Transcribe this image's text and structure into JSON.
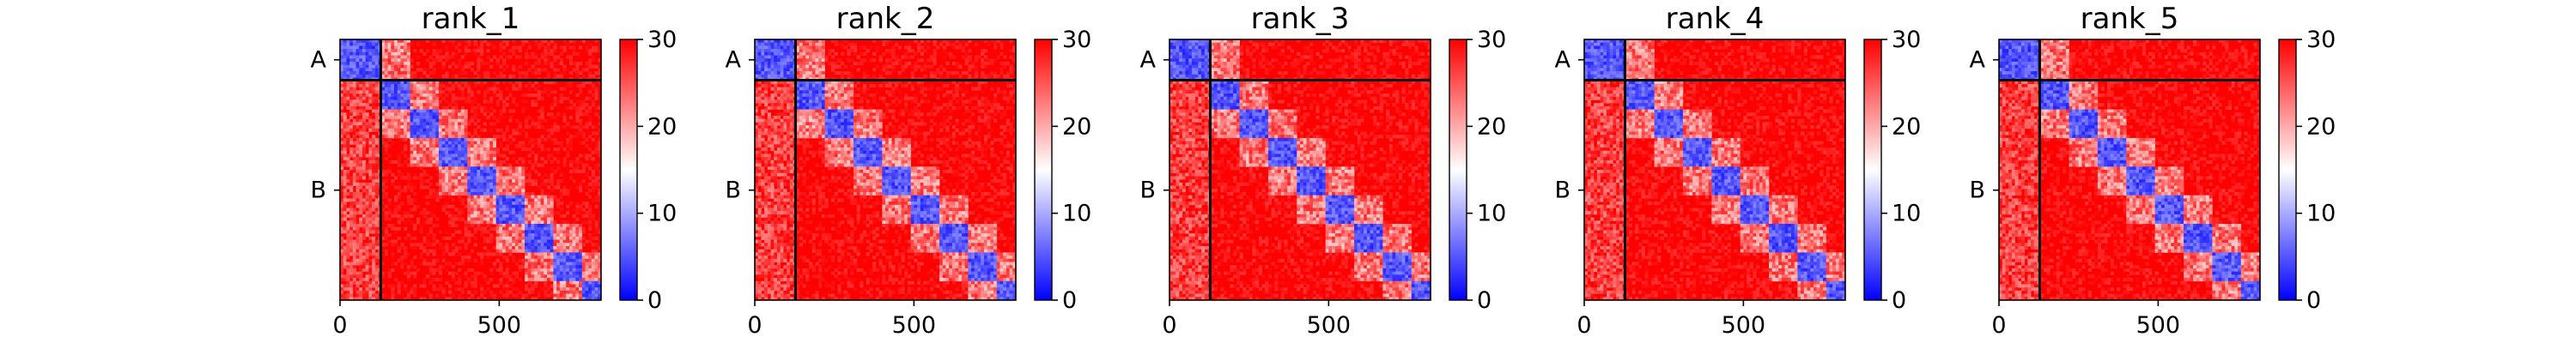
{
  "figure": {
    "background": "#ffffff"
  },
  "chart_data": [
    {
      "type": "heatmap",
      "title": "rank_1",
      "x_ticks": [
        0,
        500
      ],
      "xlim": [
        0,
        820
      ],
      "y_categories": [
        "A",
        "B"
      ],
      "group_boundary": 128,
      "blocks": [
        [
          0,
          128
        ],
        [
          128,
          218
        ],
        [
          218,
          308
        ],
        [
          308,
          398
        ],
        [
          398,
          488
        ],
        [
          488,
          578
        ],
        [
          578,
          668
        ],
        [
          668,
          758
        ],
        [
          758,
          820
        ]
      ],
      "colorbar": {
        "min": 0,
        "max": 30,
        "ticks": [
          0,
          10,
          20,
          30
        ],
        "colors": [
          "#0000ff",
          "#ffffff",
          "#ff0000"
        ]
      }
    },
    {
      "type": "heatmap",
      "title": "rank_2",
      "x_ticks": [
        0,
        500
      ],
      "xlim": [
        0,
        820
      ],
      "y_categories": [
        "A",
        "B"
      ],
      "group_boundary": 128,
      "blocks": [
        [
          0,
          128
        ],
        [
          128,
          218
        ],
        [
          218,
          308
        ],
        [
          308,
          398
        ],
        [
          398,
          488
        ],
        [
          488,
          578
        ],
        [
          578,
          668
        ],
        [
          668,
          758
        ],
        [
          758,
          820
        ]
      ],
      "colorbar": {
        "min": 0,
        "max": 30,
        "ticks": [
          0,
          10,
          20,
          30
        ],
        "colors": [
          "#0000ff",
          "#ffffff",
          "#ff0000"
        ]
      }
    },
    {
      "type": "heatmap",
      "title": "rank_3",
      "x_ticks": [
        0,
        500
      ],
      "xlim": [
        0,
        820
      ],
      "y_categories": [
        "A",
        "B"
      ],
      "group_boundary": 128,
      "blocks": [
        [
          0,
          128
        ],
        [
          128,
          218
        ],
        [
          218,
          308
        ],
        [
          308,
          398
        ],
        [
          398,
          488
        ],
        [
          488,
          578
        ],
        [
          578,
          668
        ],
        [
          668,
          758
        ],
        [
          758,
          820
        ]
      ],
      "colorbar": {
        "min": 0,
        "max": 30,
        "ticks": [
          0,
          10,
          20,
          30
        ],
        "colors": [
          "#0000ff",
          "#ffffff",
          "#ff0000"
        ]
      }
    },
    {
      "type": "heatmap",
      "title": "rank_4",
      "x_ticks": [
        0,
        500
      ],
      "xlim": [
        0,
        820
      ],
      "y_categories": [
        "A",
        "B"
      ],
      "group_boundary": 128,
      "blocks": [
        [
          0,
          128
        ],
        [
          128,
          218
        ],
        [
          218,
          308
        ],
        [
          308,
          398
        ],
        [
          398,
          488
        ],
        [
          488,
          578
        ],
        [
          578,
          668
        ],
        [
          668,
          758
        ],
        [
          758,
          820
        ]
      ],
      "colorbar": {
        "min": 0,
        "max": 30,
        "ticks": [
          0,
          10,
          20,
          30
        ],
        "colors": [
          "#0000ff",
          "#ffffff",
          "#ff0000"
        ]
      }
    },
    {
      "type": "heatmap",
      "title": "rank_5",
      "x_ticks": [
        0,
        500
      ],
      "xlim": [
        0,
        820
      ],
      "y_categories": [
        "A",
        "B"
      ],
      "group_boundary": 128,
      "blocks": [
        [
          0,
          128
        ],
        [
          128,
          218
        ],
        [
          218,
          308
        ],
        [
          308,
          398
        ],
        [
          398,
          488
        ],
        [
          488,
          578
        ],
        [
          578,
          668
        ],
        [
          668,
          758
        ],
        [
          758,
          820
        ]
      ],
      "colorbar": {
        "min": 0,
        "max": 30,
        "ticks": [
          0,
          10,
          20,
          30
        ],
        "colors": [
          "#0000ff",
          "#ffffff",
          "#ff0000"
        ]
      }
    }
  ]
}
